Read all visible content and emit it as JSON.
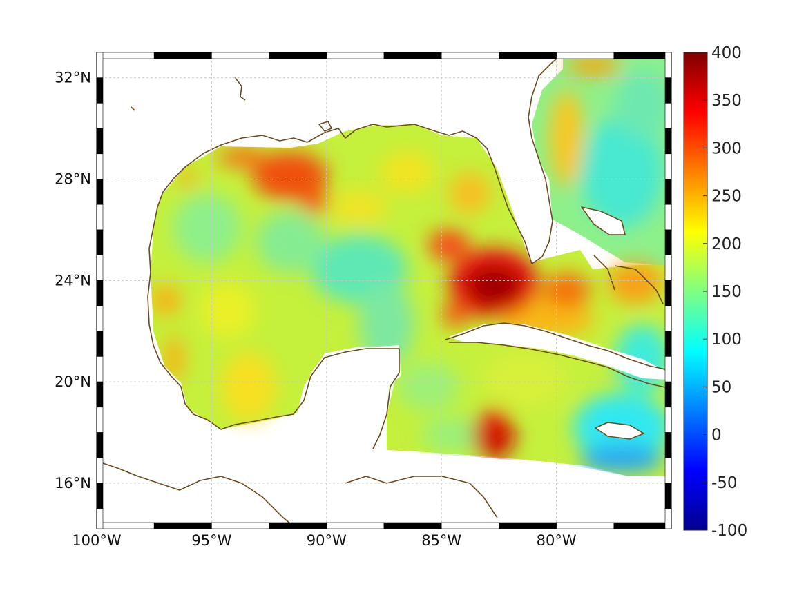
{
  "map": {
    "lon_ticks": [
      "100°W",
      "95°W",
      "90°W",
      "85°W",
      "80°W"
    ],
    "lat_ticks": [
      "32°N",
      "28°N",
      "24°N",
      "20°N",
      "16°N"
    ],
    "lon_values": [
      -100,
      -95,
      -90,
      -85,
      -80
    ],
    "lat_values": [
      32,
      28,
      24,
      20,
      16
    ],
    "lon_range": [
      -100,
      -75
    ],
    "lat_range": [
      14.2,
      33
    ]
  },
  "colorbar": {
    "ticks": [
      "400",
      "350",
      "300",
      "250",
      "200",
      "150",
      "100",
      "50",
      "0",
      "-50",
      "-100"
    ],
    "range": [
      -100,
      400
    ],
    "colormap": "jet"
  },
  "colors": {
    "coastline": "#6b4a1c",
    "grid": "#c8c8c8"
  }
}
